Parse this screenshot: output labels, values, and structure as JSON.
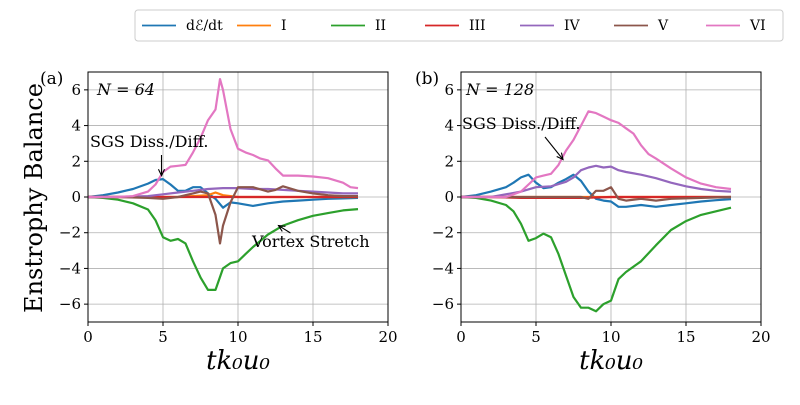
{
  "chart_data": [
    {
      "type": "line",
      "panel_label": "(a)",
      "title": "N = 64",
      "xlabel": "tk₀u₀",
      "ylabel": "Enstrophy Balance",
      "xlim": [
        0,
        20
      ],
      "ylim": [
        -7,
        7
      ],
      "xticks": [
        0,
        5,
        10,
        15,
        20
      ],
      "yticks": [
        -6,
        -4,
        -2,
        0,
        2,
        4,
        6
      ],
      "grid": true,
      "annotations": [
        {
          "text": "SGS Diss./Diff.",
          "arrow_to": [
            4.9,
            1.2
          ]
        },
        {
          "text": "Vortex Stretch",
          "arrow_to": [
            12.7,
            -1.6
          ]
        }
      ],
      "series": [
        {
          "name": "dE/dt",
          "color": "#1f77b4",
          "x": [
            0,
            1,
            2,
            3,
            4,
            4.5,
            5,
            5.5,
            6,
            6.5,
            7,
            7.5,
            8,
            8.5,
            9,
            9.5,
            10,
            11,
            12,
            13,
            14,
            15,
            16,
            17,
            18
          ],
          "y": [
            0,
            0.1,
            0.25,
            0.45,
            0.75,
            0.95,
            1.0,
            0.7,
            0.35,
            0.35,
            0.55,
            0.55,
            0.2,
            -0.1,
            -0.6,
            -0.3,
            -0.35,
            -0.5,
            -0.35,
            -0.25,
            -0.2,
            -0.15,
            -0.1,
            -0.08,
            -0.05
          ]
        },
        {
          "name": "I",
          "color": "#ff7f0e",
          "x": [
            0,
            2,
            4,
            6,
            7,
            8,
            8.5,
            9,
            10,
            12,
            14,
            16,
            18
          ],
          "y": [
            0,
            0,
            0,
            0,
            0.05,
            0.1,
            0.25,
            0.1,
            0,
            0,
            0,
            0,
            0
          ]
        },
        {
          "name": "II",
          "color": "#2ca02c",
          "x": [
            0,
            1,
            2,
            3,
            4,
            4.5,
            5,
            5.5,
            6,
            6.5,
            7,
            7.5,
            8,
            8.5,
            9,
            9.5,
            10,
            10.5,
            11,
            12,
            13,
            14,
            15,
            16,
            17,
            18
          ],
          "y": [
            0,
            -0.05,
            -0.15,
            -0.35,
            -0.7,
            -1.3,
            -2.25,
            -2.45,
            -2.35,
            -2.6,
            -3.6,
            -4.5,
            -5.2,
            -5.2,
            -4.0,
            -3.7,
            -3.6,
            -3.2,
            -2.8,
            -2.1,
            -1.6,
            -1.3,
            -1.05,
            -0.9,
            -0.75,
            -0.68
          ]
        },
        {
          "name": "III",
          "color": "#d62728",
          "x": [
            0,
            2,
            4,
            6,
            8,
            10,
            12,
            14,
            16,
            18
          ],
          "y": [
            0,
            0,
            0,
            0,
            0,
            0,
            0,
            0,
            0,
            0
          ]
        },
        {
          "name": "IV",
          "color": "#9467bd",
          "x": [
            0,
            2,
            4,
            5,
            6,
            7,
            8,
            9,
            10,
            11,
            12,
            13,
            14,
            15,
            16,
            17,
            18
          ],
          "y": [
            0,
            0,
            0.05,
            0.15,
            0.25,
            0.35,
            0.45,
            0.5,
            0.5,
            0.45,
            0.45,
            0.4,
            0.35,
            0.3,
            0.25,
            0.2,
            0.2
          ]
        },
        {
          "name": "V",
          "color": "#8c564b",
          "x": [
            0,
            2,
            4,
            5,
            6,
            7,
            7.5,
            8,
            8.5,
            8.8,
            9,
            9.5,
            10,
            11,
            12,
            12.5,
            13,
            14,
            15,
            16,
            17,
            18
          ],
          "y": [
            0,
            0,
            -0.05,
            -0.1,
            0,
            0.2,
            0.3,
            0.2,
            -1.0,
            -2.6,
            -1.6,
            -0.3,
            0.55,
            0.55,
            0.3,
            0.4,
            0.6,
            0.35,
            0.2,
            0.1,
            0.05,
            0.05
          ]
        },
        {
          "name": "VI",
          "color": "#e377c2",
          "x": [
            0,
            1,
            2,
            3,
            4,
            4.5,
            5,
            5.5,
            6,
            6.5,
            7,
            7.5,
            8,
            8.5,
            8.8,
            9,
            9.5,
            10,
            10.5,
            11,
            11.5,
            12,
            12.5,
            13,
            14,
            15,
            16,
            17,
            17.5,
            18
          ],
          "y": [
            0,
            0,
            0,
            0.05,
            0.3,
            0.7,
            1.4,
            1.7,
            1.75,
            1.8,
            2.5,
            3.3,
            4.3,
            4.9,
            6.6,
            6.0,
            3.8,
            2.7,
            2.5,
            2.35,
            2.15,
            2.05,
            1.6,
            1.2,
            1.2,
            1.15,
            1.05,
            0.8,
            0.55,
            0.5
          ]
        }
      ]
    },
    {
      "type": "line",
      "panel_label": "(b)",
      "title": "N = 128",
      "xlabel": "tk₀u₀",
      "ylabel": "",
      "xlim": [
        0,
        20
      ],
      "ylim": [
        -7,
        7
      ],
      "xticks": [
        0,
        5,
        10,
        15,
        20
      ],
      "yticks": [
        -6,
        -4,
        -2,
        0,
        2,
        4,
        6
      ],
      "grid": true,
      "annotations": [
        {
          "text": "SGS Diss./Diff.",
          "arrow_to": [
            6.8,
            2.1
          ]
        }
      ],
      "series": [
        {
          "name": "dE/dt",
          "color": "#1f77b4",
          "x": [
            0,
            1,
            2,
            3,
            3.5,
            4,
            4.5,
            5,
            5.5,
            6,
            6.5,
            7,
            7.5,
            8,
            8.5,
            9,
            9.5,
            10,
            10.5,
            11,
            12,
            13,
            14,
            15,
            16,
            17,
            18
          ],
          "y": [
            0,
            0.1,
            0.3,
            0.55,
            0.8,
            1.1,
            1.25,
            0.8,
            0.5,
            0.55,
            0.8,
            1.0,
            1.25,
            0.9,
            0.3,
            -0.1,
            -0.2,
            -0.25,
            -0.55,
            -0.55,
            -0.45,
            -0.55,
            -0.45,
            -0.35,
            -0.25,
            -0.18,
            -0.12
          ]
        },
        {
          "name": "I",
          "color": "#ff7f0e",
          "x": [
            0,
            4,
            8,
            12,
            16,
            18
          ],
          "y": [
            0,
            0,
            0,
            0,
            0,
            0
          ]
        },
        {
          "name": "II",
          "color": "#2ca02c",
          "x": [
            0,
            1,
            2,
            3,
            3.5,
            4,
            4.5,
            5,
            5.5,
            6,
            6.5,
            7,
            7.5,
            8,
            8.5,
            9,
            9.5,
            10,
            10.5,
            11,
            12,
            13,
            14,
            15,
            16,
            17,
            18
          ],
          "y": [
            0,
            -0.05,
            -0.2,
            -0.45,
            -0.8,
            -1.5,
            -2.45,
            -2.3,
            -2.05,
            -2.25,
            -3.2,
            -4.4,
            -5.6,
            -6.2,
            -6.2,
            -6.4,
            -6.0,
            -5.8,
            -4.6,
            -4.2,
            -3.6,
            -2.7,
            -1.85,
            -1.35,
            -1.0,
            -0.8,
            -0.6
          ]
        },
        {
          "name": "III",
          "color": "#d62728",
          "x": [
            0,
            2,
            4,
            6,
            8,
            10,
            12,
            14,
            16,
            18
          ],
          "y": [
            0,
            0,
            -0.05,
            -0.05,
            -0.05,
            0,
            0,
            0,
            0,
            0
          ]
        },
        {
          "name": "IV",
          "color": "#9467bd",
          "x": [
            0,
            2,
            4,
            5,
            6,
            7,
            7.5,
            8,
            8.5,
            9,
            9.5,
            10,
            10.5,
            11,
            12,
            13,
            14,
            15,
            16,
            17,
            18
          ],
          "y": [
            0,
            0,
            0.3,
            0.55,
            0.6,
            0.85,
            1.1,
            1.5,
            1.65,
            1.75,
            1.65,
            1.7,
            1.5,
            1.4,
            1.25,
            1.05,
            0.8,
            0.6,
            0.45,
            0.35,
            0.3
          ]
        },
        {
          "name": "V",
          "color": "#8c564b",
          "x": [
            0,
            2,
            4,
            6,
            7,
            8,
            8.5,
            9,
            9.5,
            10,
            10.5,
            11,
            12,
            13,
            14,
            16,
            18
          ],
          "y": [
            0,
            0,
            0,
            0,
            0,
            0,
            -0.1,
            0.35,
            0.35,
            0.55,
            -0.1,
            -0.2,
            -0.1,
            -0.2,
            -0.1,
            -0.05,
            0
          ]
        },
        {
          "name": "VI",
          "color": "#e377c2",
          "x": [
            0,
            3,
            4,
            4.5,
            5,
            5.5,
            6,
            6.5,
            7,
            7.5,
            8,
            8.5,
            9,
            9.5,
            10,
            10.5,
            11,
            11.5,
            12,
            12.5,
            13,
            14,
            15,
            16,
            17,
            18
          ],
          "y": [
            0,
            0,
            0.3,
            0.7,
            1.1,
            1.2,
            1.3,
            1.8,
            2.6,
            3.2,
            4.0,
            4.8,
            4.7,
            4.5,
            4.3,
            4.15,
            3.85,
            3.55,
            2.9,
            2.4,
            2.15,
            1.6,
            1.1,
            0.75,
            0.55,
            0.45
          ]
        }
      ]
    }
  ],
  "legend": {
    "placement": "top",
    "entries": [
      {
        "label": "dℰ/dt",
        "color": "#1f77b4"
      },
      {
        "label": "I",
        "color": "#ff7f0e"
      },
      {
        "label": "II",
        "color": "#2ca02c"
      },
      {
        "label": "III",
        "color": "#d62728"
      },
      {
        "label": "IV",
        "color": "#9467bd"
      },
      {
        "label": "V",
        "color": "#8c564b"
      },
      {
        "label": "VI",
        "color": "#e377c2"
      }
    ]
  }
}
